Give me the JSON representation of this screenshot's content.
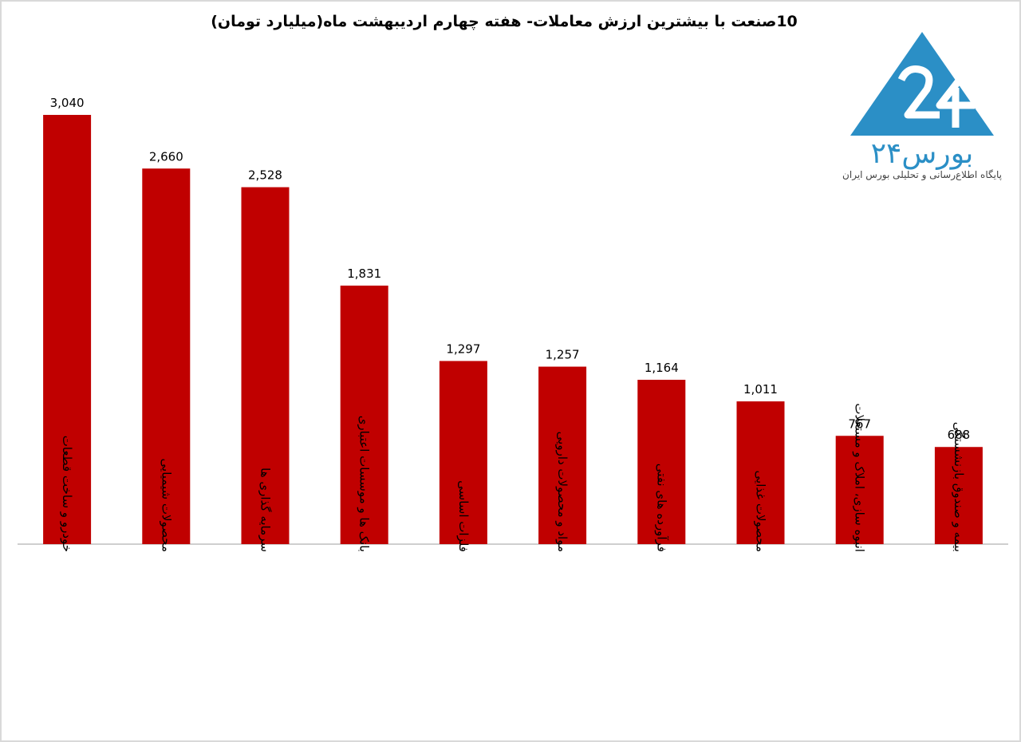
{
  "chart_data": {
    "type": "bar",
    "title": "10صنعت با بیشترین ارزش معاملات- هفته چهارم اردیبهشت ماه(میلیارد تومان)",
    "categories": [
      "خودرو و ساخت قطعات",
      "محصولات شیمیایی",
      "سرمایه گذاری ها",
      "بانک ها و موسسات اعتباری",
      "فلزات اساسی",
      "مواد و محصولات دارویی",
      "فرآورده های نفتی",
      "محصولات غذایی",
      "انبوه سازی، املاک و مستغلات",
      "بیمه و صندوق بازنشستگی"
    ],
    "values": [
      3040,
      2660,
      2528,
      1831,
      1297,
      1257,
      1164,
      1011,
      767,
      688
    ],
    "value_labels": [
      "3,040",
      "2,660",
      "2,528",
      "1,831",
      "1,297",
      "1,257",
      "1,164",
      "1,011",
      "767",
      "688"
    ],
    "ylim": [
      0,
      3040
    ],
    "grid": false,
    "legend": "none",
    "bar_color": "#c00000",
    "axis_color": "#bfbfbf"
  },
  "logo": {
    "name": "بورس۲۴",
    "tagline": "پایگاه اطلاع‌رسانی و تحلیلی بورس ایران",
    "color": "#2b8fc6"
  }
}
